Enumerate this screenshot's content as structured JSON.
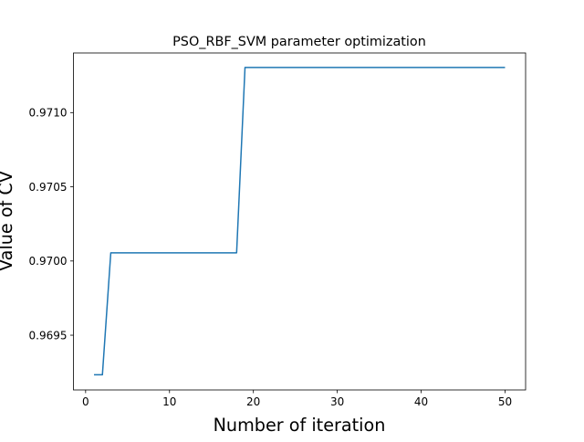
{
  "chart_data": {
    "type": "line",
    "title": "PSO_RBF_SVM parameter optimization",
    "xlabel": "Number of iteration",
    "ylabel": "Value of CV",
    "xlim": [
      -1.45,
      52.45
    ],
    "ylim": [
      0.969131,
      0.971402
    ],
    "xticks": [
      0,
      10,
      20,
      30,
      40,
      50
    ],
    "xtick_labels": [
      "0",
      "10",
      "20",
      "30",
      "40",
      "50"
    ],
    "yticks": [
      0.9695,
      0.97,
      0.9705,
      0.971
    ],
    "ytick_labels": [
      "0.9695",
      "0.9700",
      "0.9705",
      "0.9710"
    ],
    "grid": false,
    "line_color": "#1f77b4",
    "series": [
      {
        "x": [
          1,
          2,
          3,
          4,
          5,
          6,
          7,
          8,
          9,
          10,
          11,
          12,
          13,
          14,
          15,
          16,
          17,
          18,
          19,
          20,
          21,
          22,
          23,
          24,
          25,
          26,
          27,
          28,
          29,
          30,
          31,
          32,
          33,
          34,
          35,
          36,
          37,
          38,
          39,
          40,
          41,
          42,
          43,
          44,
          45,
          46,
          47,
          48,
          49,
          50
        ],
        "values": [
          0.969233,
          0.969233,
          0.970055,
          0.970055,
          0.970055,
          0.970055,
          0.970055,
          0.970055,
          0.970055,
          0.970055,
          0.970055,
          0.970055,
          0.970055,
          0.970055,
          0.970055,
          0.970055,
          0.970055,
          0.970055,
          0.971304,
          0.971304,
          0.971304,
          0.971304,
          0.971304,
          0.971304,
          0.971304,
          0.971304,
          0.971304,
          0.971304,
          0.971304,
          0.971304,
          0.971304,
          0.971304,
          0.971304,
          0.971304,
          0.971304,
          0.971304,
          0.971304,
          0.971304,
          0.971304,
          0.971304,
          0.971304,
          0.971304,
          0.971304,
          0.971304,
          0.971304,
          0.971304,
          0.971304,
          0.971304,
          0.971304,
          0.971304
        ]
      }
    ]
  }
}
